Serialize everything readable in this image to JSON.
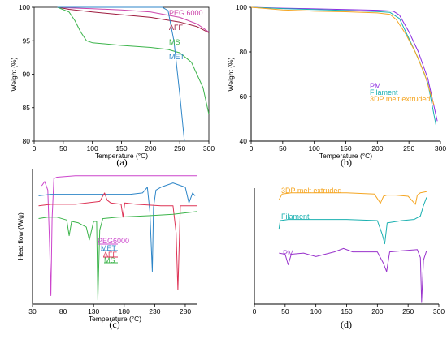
{
  "chart_data": [
    {
      "panel": "(a)",
      "type": "line",
      "xlabel": "Temperature (°C)",
      "ylabel": "Weight (%)",
      "xlim": [
        0,
        300
      ],
      "ylim": [
        80,
        100
      ],
      "xticks": [
        0,
        50,
        100,
        150,
        200,
        250,
        300
      ],
      "yticks": [
        80,
        85,
        90,
        95,
        100
      ],
      "series": [
        {
          "name": "PEG 6000",
          "color": "#cc44aa",
          "x": [
            40,
            60,
            100,
            150,
            200,
            250,
            280,
            300
          ],
          "y": [
            100,
            99.9,
            99.8,
            99.6,
            99.3,
            98.5,
            97.5,
            96.3
          ]
        },
        {
          "name": "AFF",
          "color": "#9e1b3f",
          "x": [
            40,
            60,
            100,
            150,
            200,
            250,
            280,
            300
          ],
          "y": [
            100,
            99.7,
            99.3,
            98.9,
            98.5,
            97.8,
            97.1,
            96.2
          ]
        },
        {
          "name": "MS",
          "color": "#3cb44b",
          "x": [
            40,
            60,
            70,
            80,
            90,
            100,
            150,
            200,
            230,
            250,
            270,
            290,
            300
          ],
          "y": [
            100,
            99.3,
            98.0,
            96.3,
            95.0,
            94.7,
            94.3,
            94.0,
            93.7,
            93.2,
            91.8,
            88.0,
            84.0
          ]
        },
        {
          "name": "MET",
          "color": "#2e86c8",
          "x": [
            40,
            100,
            150,
            200,
            220,
            230,
            240,
            250,
            258
          ],
          "y": [
            100,
            100,
            100,
            100,
            100,
            99.5,
            95.0,
            87.0,
            80.0
          ]
        }
      ]
    },
    {
      "panel": "(b)",
      "type": "line",
      "xlabel": "Temperature (°C)",
      "ylabel": "Weight (%)",
      "xlim": [
        0,
        300
      ],
      "ylim": [
        40,
        100
      ],
      "xticks": [
        0,
        50,
        100,
        150,
        200,
        250,
        300
      ],
      "yticks": [
        40,
        60,
        80,
        100
      ],
      "series": [
        {
          "name": "PM",
          "color": "#8b2be2",
          "x": [
            0,
            50,
            100,
            150,
            200,
            225,
            235,
            250,
            265,
            280,
            295
          ],
          "y": [
            100,
            99.6,
            99.3,
            99.0,
            98.7,
            98.3,
            96.5,
            89.0,
            80.0,
            68.0,
            49.0
          ]
        },
        {
          "name": "Filament",
          "color": "#1ab0b0",
          "x": [
            0,
            50,
            100,
            150,
            200,
            220,
            235,
            250,
            265,
            280,
            293
          ],
          "y": [
            100,
            99.4,
            99.0,
            98.6,
            98.1,
            97.7,
            95.0,
            86.0,
            77.0,
            66.0,
            47.0
          ]
        },
        {
          "name": "3DP melt extruded",
          "color": "#f5a623",
          "x": [
            0,
            50,
            100,
            150,
            200,
            220,
            230,
            245,
            260,
            275,
            290
          ],
          "y": [
            100,
            98.8,
            98.3,
            98.0,
            97.5,
            96.8,
            94.5,
            88.0,
            80.0,
            70.0,
            56.0
          ]
        }
      ]
    },
    {
      "panel": "(c)",
      "type": "line",
      "xlabel": "Temperature (°C)",
      "ylabel": "Heat flow (W/g)",
      "xlim": [
        30,
        300
      ],
      "xticks": [
        30,
        80,
        130,
        180,
        230,
        280
      ],
      "series": [
        {
          "name": "PEG6000",
          "color": "#cc44cc",
          "x": [
            45,
            50,
            55,
            58,
            60,
            62,
            65,
            70,
            100,
            200,
            300
          ],
          "y": [
            8.3,
            8.6,
            8.0,
            4.0,
            0.6,
            6.0,
            8.8,
            8.9,
            9.0,
            9.0,
            9.0
          ]
        },
        {
          "name": "MET",
          "color": "#2e86c8",
          "x": [
            40,
            60,
            100,
            150,
            190,
            210,
            218,
            222,
            226,
            228,
            232,
            240,
            260,
            280,
            286,
            292,
            296
          ],
          "y": [
            7.6,
            7.7,
            7.7,
            7.7,
            7.7,
            7.8,
            8.2,
            6.5,
            2.3,
            6.8,
            8.0,
            8.2,
            8.5,
            8.2,
            7.1,
            7.8,
            7.6
          ]
        },
        {
          "name": "AFF",
          "color": "#dd3355",
          "x": [
            40,
            60,
            100,
            140,
            148,
            152,
            158,
            175,
            178,
            181,
            200,
            240,
            260,
            265,
            268,
            272,
            300
          ],
          "y": [
            6.9,
            7.0,
            7.0,
            7.2,
            7.8,
            7.3,
            7.1,
            7.0,
            6.1,
            7.1,
            7.0,
            6.9,
            6.9,
            5.0,
            1.0,
            6.9,
            6.9
          ]
        },
        {
          "name": "MS",
          "color": "#3cb44b",
          "x": [
            40,
            55,
            70,
            86,
            90,
            94,
            105,
            118,
            123,
            130,
            135,
            137,
            140,
            145,
            170,
            220,
            260,
            300
          ],
          "y": [
            6.0,
            6.1,
            6.1,
            5.9,
            4.8,
            5.8,
            5.7,
            5.4,
            4.5,
            5.8,
            5.8,
            0.3,
            5.2,
            6.0,
            6.1,
            6.2,
            6.3,
            6.5
          ]
        }
      ]
    },
    {
      "panel": "(d)",
      "type": "line",
      "xlim": [
        0,
        300
      ],
      "xticks": [
        0,
        50,
        100,
        150,
        200,
        250,
        300
      ],
      "series": [
        {
          "name": "3DP melt extruded",
          "color": "#f5a623",
          "x": [
            40,
            45,
            60,
            100,
            150,
            195,
            205,
            210,
            215,
            230,
            250,
            262,
            265,
            270,
            280
          ],
          "y": [
            9.0,
            9.5,
            9.6,
            9.6,
            9.6,
            9.5,
            8.7,
            9.3,
            9.4,
            9.4,
            9.3,
            8.6,
            9.4,
            9.6,
            9.7
          ]
        },
        {
          "name": "Filament",
          "color": "#1ab0b0",
          "x": [
            40,
            42,
            55,
            100,
            150,
            200,
            208,
            212,
            216,
            240,
            260,
            270,
            275,
            280
          ],
          "y": [
            6.5,
            7.2,
            7.3,
            7.3,
            7.3,
            7.2,
            6.0,
            5.2,
            7.0,
            7.2,
            7.3,
            7.6,
            8.5,
            9.2
          ]
        },
        {
          "name": "PM",
          "color": "#9933cc",
          "x": [
            40,
            50,
            55,
            60,
            80,
            100,
            130,
            145,
            160,
            200,
            210,
            215,
            220,
            240,
            265,
            270,
            272,
            275,
            280
          ],
          "y": [
            4.4,
            4.3,
            3.4,
            4.3,
            4.4,
            4.1,
            4.5,
            4.8,
            4.5,
            4.5,
            3.5,
            2.8,
            4.5,
            4.6,
            4.7,
            4.0,
            0.2,
            3.8,
            4.6
          ]
        }
      ]
    }
  ]
}
